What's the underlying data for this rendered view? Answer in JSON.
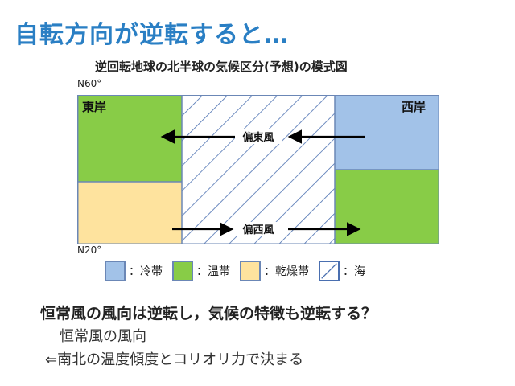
{
  "slide": {
    "title": "自転方向が逆転すると…"
  },
  "diagram": {
    "title": "逆回転地球の北半球の気候区分(予想)の模式図",
    "lat_top": "N60°",
    "lat_bottom": "N20°",
    "east_coast": "東岸",
    "west_coast": "西岸",
    "easterly_wind": "偏東風",
    "westerly_wind": "偏西風",
    "colors": {
      "cold": "#a2c2e8",
      "temperate": "#88cc47",
      "arid": "#fee39e",
      "sea_stripe": "#4a6fb0",
      "border": "#6b87b6"
    }
  },
  "legend": [
    {
      "key": "cold",
      "label": "：冷帯"
    },
    {
      "key": "temperate",
      "label": "：温帯"
    },
    {
      "key": "arid",
      "label": "：乾燥帯"
    },
    {
      "key": "sea",
      "label": "：海"
    }
  ],
  "text": {
    "question": "恒常風の風向は逆転し，気候の特徴も逆転する？",
    "line1": "恒常風の風向",
    "line2": "⇐南北の温度傾度とコリオリ力で決まる"
  }
}
